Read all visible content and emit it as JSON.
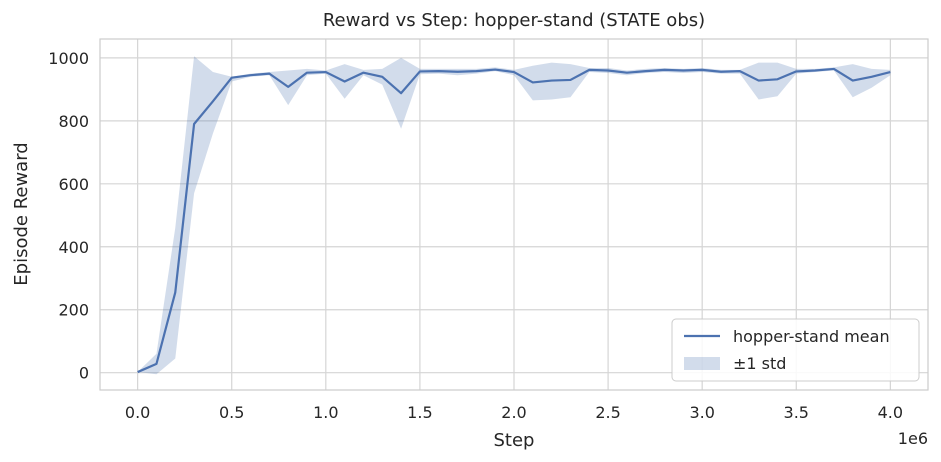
{
  "chart_data": {
    "type": "line",
    "title": "Reward vs Step: hopper-stand (STATE obs)",
    "xlabel": "Step",
    "ylabel": "Episode Reward",
    "x_multiplier_label": "1e6",
    "xlim": [
      -0.2,
      4.2
    ],
    "ylim": [
      -55,
      1060
    ],
    "xticks": [
      0.0,
      0.5,
      1.0,
      1.5,
      2.0,
      2.5,
      3.0,
      3.5,
      4.0
    ],
    "xtick_labels": [
      "0.0",
      "0.5",
      "1.0",
      "1.5",
      "2.0",
      "2.5",
      "3.0",
      "3.5",
      "4.0"
    ],
    "yticks": [
      0,
      200,
      400,
      600,
      800,
      1000
    ],
    "ytick_labels": [
      "0",
      "200",
      "400",
      "600",
      "800",
      "1000"
    ],
    "grid": true,
    "legend_position": "bottom-right",
    "x": [
      0.0,
      0.1,
      0.2,
      0.3,
      0.4,
      0.5,
      0.6,
      0.7,
      0.8,
      0.9,
      1.0,
      1.1,
      1.2,
      1.3,
      1.4,
      1.5,
      1.6,
      1.7,
      1.8,
      1.9,
      2.0,
      2.1,
      2.2,
      2.3,
      2.4,
      2.5,
      2.6,
      2.7,
      2.8,
      2.9,
      3.0,
      3.1,
      3.2,
      3.3,
      3.4,
      3.5,
      3.6,
      3.7,
      3.8,
      3.9,
      4.0
    ],
    "series": [
      {
        "name": "hopper-stand mean",
        "color": "#4c72b0",
        "values": [
          2,
          28,
          255,
          790,
          862,
          937,
          945,
          950,
          908,
          953,
          955,
          925,
          953,
          940,
          888,
          957,
          958,
          956,
          958,
          963,
          955,
          922,
          928,
          930,
          962,
          960,
          953,
          958,
          962,
          960,
          962,
          956,
          958,
          928,
          932,
          957,
          960,
          965,
          928,
          940,
          955
        ]
      }
    ],
    "band": {
      "name": "±1 std",
      "color": "#4c72b0",
      "opacity": 0.25,
      "lower": [
        2,
        -5,
        45,
        570,
        760,
        925,
        940,
        945,
        850,
        945,
        950,
        870,
        945,
        915,
        775,
        948,
        950,
        945,
        950,
        958,
        945,
        865,
        868,
        875,
        955,
        952,
        945,
        952,
        955,
        952,
        955,
        950,
        950,
        868,
        878,
        950,
        955,
        960,
        875,
        905,
        945
      ],
      "upper": [
        2,
        60,
        460,
        1005,
        955,
        940,
        950,
        955,
        960,
        965,
        960,
        980,
        962,
        965,
        1000,
        965,
        965,
        965,
        965,
        970,
        962,
        975,
        985,
        980,
        968,
        968,
        960,
        965,
        968,
        965,
        968,
        962,
        962,
        985,
        985,
        965,
        965,
        970,
        980,
        965,
        962
      ]
    }
  }
}
